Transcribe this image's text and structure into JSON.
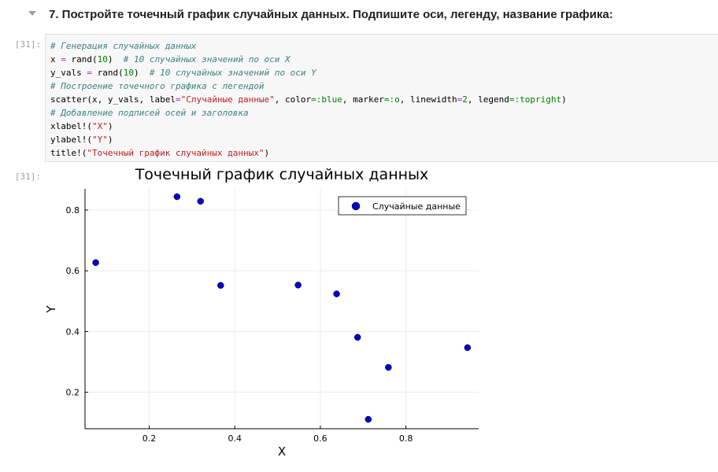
{
  "markdown": {
    "heading": "7. Постройте точечный график случайных данных. Подпишите оси, легенду, название графика:"
  },
  "input_prompt": "[31]:",
  "output_prompt": "[31]:",
  "code_lines": [
    [
      {
        "t": "# Генерация случайных данных",
        "c": "c-com"
      }
    ],
    [
      {
        "t": "x ",
        "c": ""
      },
      {
        "t": "=",
        "c": "c-op"
      },
      {
        "t": " rand(",
        "c": ""
      },
      {
        "t": "10",
        "c": "c-num"
      },
      {
        "t": ")  ",
        "c": ""
      },
      {
        "t": "# 10 случайных значений по оси X",
        "c": "c-com"
      }
    ],
    [
      {
        "t": "y_vals ",
        "c": ""
      },
      {
        "t": "=",
        "c": "c-op"
      },
      {
        "t": " rand(",
        "c": ""
      },
      {
        "t": "10",
        "c": "c-num"
      },
      {
        "t": ")  ",
        "c": ""
      },
      {
        "t": "# 10 случайных значений по оси Y",
        "c": "c-com"
      }
    ],
    [
      {
        "t": "# Построение точечного графика с легендой",
        "c": "c-com"
      }
    ],
    [
      {
        "t": "scatter(x, y_vals, label",
        "c": ""
      },
      {
        "t": "=",
        "c": "c-op"
      },
      {
        "t": "\"Случайные данные\"",
        "c": "c-str"
      },
      {
        "t": ", color",
        "c": ""
      },
      {
        "t": "=:blue",
        "c": "c-kw"
      },
      {
        "t": ", marker",
        "c": ""
      },
      {
        "t": "=:o",
        "c": "c-kw"
      },
      {
        "t": ", linewidth",
        "c": ""
      },
      {
        "t": "=",
        "c": "c-op"
      },
      {
        "t": "2",
        "c": "c-num"
      },
      {
        "t": ", legend",
        "c": ""
      },
      {
        "t": "=:topright",
        "c": "c-kw"
      },
      {
        "t": ")",
        "c": ""
      }
    ],
    [
      {
        "t": "# Добавление подписей осей и заголовка",
        "c": "c-com"
      }
    ],
    [
      {
        "t": "xlabel!(",
        "c": ""
      },
      {
        "t": "\"X\"",
        "c": "c-str"
      },
      {
        "t": ")",
        "c": ""
      }
    ],
    [
      {
        "t": "ylabel!(",
        "c": ""
      },
      {
        "t": "\"Y\"",
        "c": "c-str"
      },
      {
        "t": ")",
        "c": ""
      }
    ],
    [
      {
        "t": "title!(",
        "c": ""
      },
      {
        "t": "\"Точечный график случайных данных\"",
        "c": "c-str"
      },
      {
        "t": ")",
        "c": ""
      }
    ]
  ],
  "chart_data": {
    "type": "scatter",
    "title": "Точечный график случайных данных",
    "xlabel": "X",
    "ylabel": "Y",
    "xlim": [
      0.05,
      0.97
    ],
    "ylim": [
      0.08,
      0.87
    ],
    "xticks": [
      0.2,
      0.4,
      0.6,
      0.8
    ],
    "yticks": [
      0.2,
      0.4,
      0.6,
      0.8
    ],
    "xtick_labels": [
      "0.2",
      "0.4",
      "0.6",
      "0.8"
    ],
    "ytick_labels": [
      "0.2",
      "0.4",
      "0.6",
      "0.8"
    ],
    "grid": true,
    "legend_position": "top-right",
    "marker_color": "#0000cd",
    "series": [
      {
        "name": "Случайные данные",
        "points": [
          {
            "x": 0.075,
            "y": 0.627
          },
          {
            "x": 0.265,
            "y": 0.844
          },
          {
            "x": 0.32,
            "y": 0.829
          },
          {
            "x": 0.367,
            "y": 0.552
          },
          {
            "x": 0.548,
            "y": 0.553
          },
          {
            "x": 0.638,
            "y": 0.524
          },
          {
            "x": 0.687,
            "y": 0.381
          },
          {
            "x": 0.712,
            "y": 0.111
          },
          {
            "x": 0.759,
            "y": 0.282
          },
          {
            "x": 0.944,
            "y": 0.347
          }
        ]
      }
    ]
  }
}
